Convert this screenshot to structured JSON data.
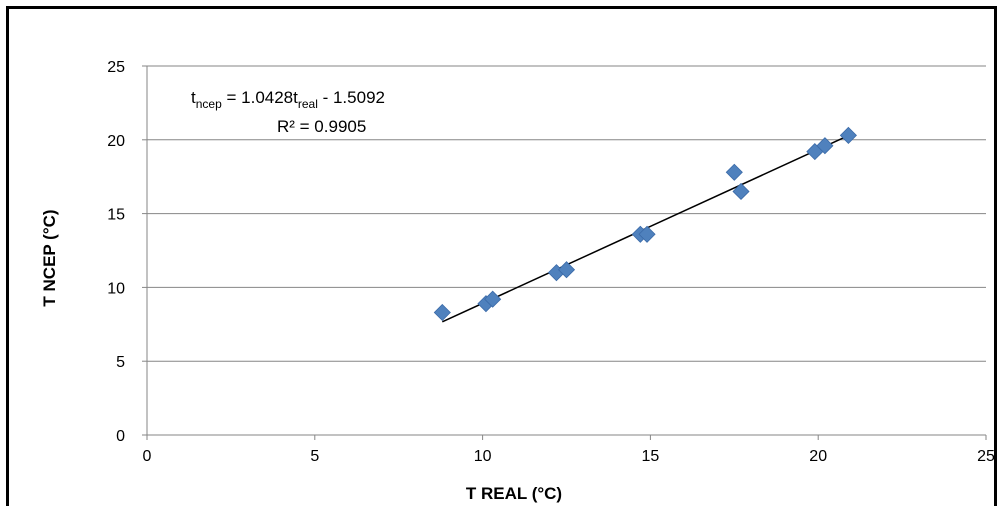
{
  "chart_data": {
    "type": "scatter",
    "xlabel": "T REAL (°C)",
    "ylabel": "T NCEP (°C)",
    "xlim": [
      0,
      25
    ],
    "ylim": [
      0,
      25
    ],
    "xticks": [
      "0",
      "5",
      "10",
      "15",
      "20",
      "25"
    ],
    "yticks": [
      "0",
      "5",
      "10",
      "15",
      "20",
      "25"
    ],
    "grid": "horizontal",
    "marker": "diamond",
    "marker_color": "#4f81bd",
    "series": [
      {
        "x": [
          8.8,
          10.1,
          10.3,
          12.2,
          12.5,
          14.7,
          14.9,
          17.5,
          17.7,
          19.9,
          20.2,
          20.9
        ],
        "y": [
          8.3,
          8.9,
          9.2,
          11.0,
          11.2,
          13.6,
          13.6,
          17.8,
          16.5,
          19.2,
          19.6,
          20.3
        ]
      }
    ],
    "trendline": {
      "slope": 1.0428,
      "intercept": -1.5092,
      "x_range": [
        8.8,
        20.9
      ],
      "color": "#000000"
    },
    "annotation": {
      "eq_y": "t",
      "eq_y_sub": "ncep",
      "eq_mid": " = 1.0428t",
      "eq_x_sub": "real",
      "eq_end": " - 1.5092",
      "r2": "R² = 0.9905"
    }
  }
}
